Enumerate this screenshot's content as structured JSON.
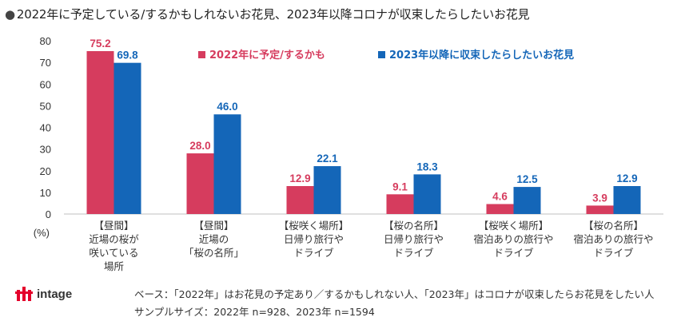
{
  "title": "2022年に予定している/するかもしれないお花見、2023年以降コロナが収束したらしたいお花見",
  "title_bullet": "●",
  "chart_data": {
    "type": "bar",
    "categories": [
      [
        "【昼間】",
        "近場の桜が",
        "咲いている",
        "場所"
      ],
      [
        "【昼間】",
        "近場の",
        "「桜の名所」"
      ],
      [
        "【桜咲く場所】",
        "日帰り旅行や",
        "ドライブ"
      ],
      [
        "【桜の名所】",
        "日帰り旅行や",
        "ドライブ"
      ],
      [
        "【桜咲く場所】",
        "宿泊ありの旅行や",
        "ドライブ"
      ],
      [
        "【桜の名所】",
        "宿泊ありの旅行や",
        "ドライブ"
      ]
    ],
    "series": [
      {
        "name": "2022年に予定/するかも",
        "color": "#D63C5E",
        "values": [
          75.2,
          28.0,
          12.9,
          9.1,
          4.6,
          3.9
        ],
        "labels": [
          "75.2",
          "28.0",
          "12.9",
          "9.1",
          "4.6",
          "3.9"
        ]
      },
      {
        "name": "2023年以降に収束したらしたいお花見",
        "color": "#1466B8",
        "values": [
          69.8,
          46.0,
          22.1,
          18.3,
          12.5,
          12.9
        ],
        "labels": [
          "69.8",
          "46.0",
          "22.1",
          "18.3",
          "12.5",
          "12.9"
        ]
      }
    ],
    "ylim": [
      0,
      80
    ],
    "yticks": [
      0,
      10,
      20,
      30,
      40,
      50,
      60,
      70,
      80
    ],
    "ylabel": "(%)",
    "legend": "top-right"
  },
  "logo": {
    "text": "intage",
    "color": "#E4002B"
  },
  "footnote": {
    "base": "ベース：「2022年」はお花見の予定あり／するかもしれない人、「2023年」はコロナが収束したらお花見をしたい人",
    "sample": "サンプルサイズ：2022年 n=928、2023年 n=1594"
  }
}
